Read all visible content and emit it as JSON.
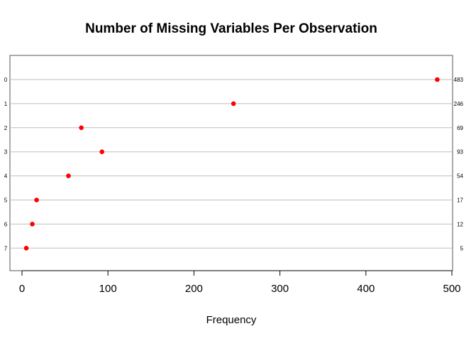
{
  "chart_data": {
    "type": "scatter",
    "title": "Number of Missing Variables Per Observation",
    "xlabel": "Frequency",
    "ylabel": "",
    "categories": [
      "0",
      "1",
      "2",
      "3",
      "4",
      "5",
      "6",
      "7"
    ],
    "values": [
      483,
      246,
      69,
      93,
      54,
      17,
      12,
      5
    ],
    "right_labels": [
      "483",
      "246",
      "69",
      "93",
      "54",
      "17",
      "12",
      "5"
    ],
    "xlim": [
      0,
      500
    ],
    "xticks": [
      "0",
      "100",
      "200",
      "300",
      "400",
      "500"
    ],
    "grid": "horizontal",
    "point_color": "#ff0000",
    "grid_color": "#bebebe",
    "axis_color": "#000000"
  }
}
